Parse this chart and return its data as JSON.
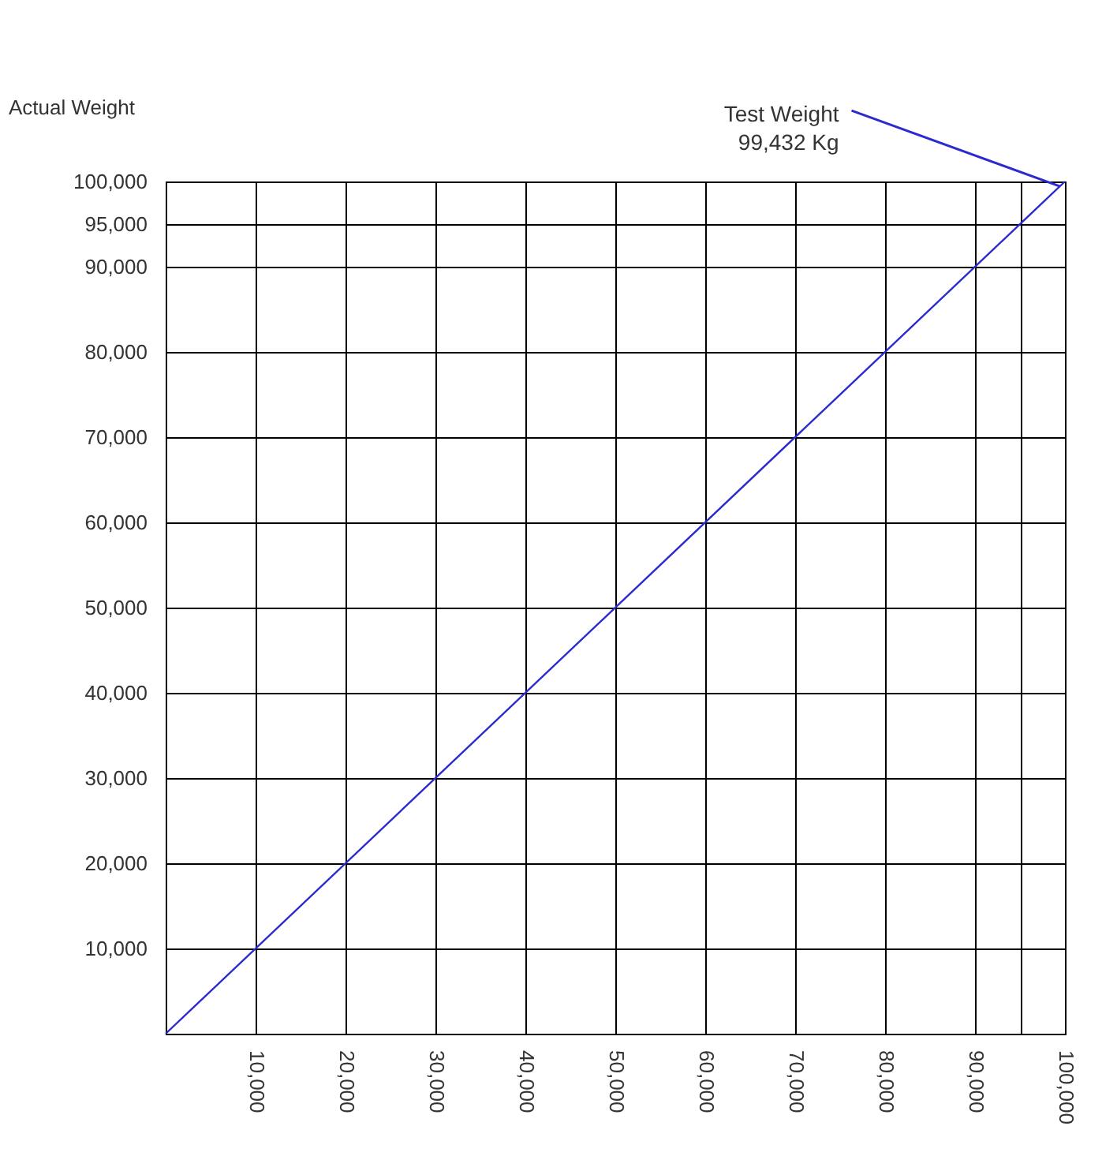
{
  "chart_data": {
    "type": "line",
    "ylabel": "Actual Weight",
    "x": [
      0,
      100000
    ],
    "series": [
      {
        "color": "#2a2ad0",
        "values": [
          0,
          100000
        ]
      }
    ],
    "xlim": [
      0,
      100000
    ],
    "ylim": [
      0,
      100000
    ],
    "xticks": [
      {
        "value": 10000,
        "label": "10,000"
      },
      {
        "value": 20000,
        "label": "20,000"
      },
      {
        "value": 30000,
        "label": "30,000"
      },
      {
        "value": 40000,
        "label": "40,000"
      },
      {
        "value": 50000,
        "label": "50,000"
      },
      {
        "value": 60000,
        "label": "60,000"
      },
      {
        "value": 70000,
        "label": "70,000"
      },
      {
        "value": 80000,
        "label": "80,000"
      },
      {
        "value": 90000,
        "label": "90,000"
      },
      {
        "value": 95000,
        "label": null
      },
      {
        "value": 100000,
        "label": "100,000"
      }
    ],
    "yticks": [
      {
        "value": 10000,
        "label": "10,000"
      },
      {
        "value": 20000,
        "label": "20,000"
      },
      {
        "value": 30000,
        "label": "30,000"
      },
      {
        "value": 40000,
        "label": "40,000"
      },
      {
        "value": 50000,
        "label": "50,000"
      },
      {
        "value": 60000,
        "label": "60,000"
      },
      {
        "value": 70000,
        "label": "70,000"
      },
      {
        "value": 80000,
        "label": "80,000"
      },
      {
        "value": 90000,
        "label": "90,000"
      },
      {
        "value": 95000,
        "label": "95,000"
      },
      {
        "value": 100000,
        "label": "100,000"
      }
    ],
    "grid": true,
    "line_style": "solid",
    "annotations": [
      {
        "text": "Test Weight\n99,432 Kg",
        "x": 99432,
        "y": 99432
      }
    ]
  }
}
